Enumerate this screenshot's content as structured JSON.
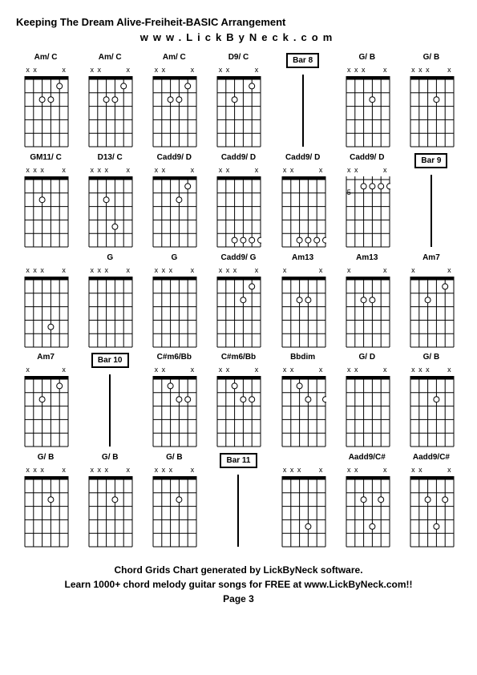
{
  "title": "Keeping The Dream Alive-Freiheit-BASIC Arrangement",
  "subtitle": "www.LickByNeck.com",
  "footer_line1": "Chord Grids Chart generated by LickByNeck software.",
  "footer_line2": "Learn 1000+ chord melody guitar songs for FREE at www.LickByNeck.com!!",
  "footer_page": "Page 3",
  "colors": {
    "background": "#ffffff",
    "stroke": "#000000",
    "text": "#000000"
  },
  "diagram_style": {
    "width": 54,
    "height": 88,
    "strings": 6,
    "frets": 5,
    "nut_height": 4,
    "dot_radius": 3.5,
    "open_dot_stroke": 1
  },
  "cells": [
    {
      "type": "chord",
      "label": "Am/ C",
      "mutes": [
        "x",
        "x",
        "",
        "",
        "",
        "x"
      ],
      "dots": [
        {
          "s": 4,
          "f": 2,
          "open": true
        },
        {
          "s": 3,
          "f": 2,
          "open": true
        },
        {
          "s": 2,
          "f": 1,
          "open": true
        }
      ],
      "ticks": [
        1
      ]
    },
    {
      "type": "chord",
      "label": "Am/ C",
      "mutes": [
        "x",
        "x",
        "",
        "",
        "",
        "x"
      ],
      "dots": [
        {
          "s": 4,
          "f": 2,
          "open": true
        },
        {
          "s": 3,
          "f": 2,
          "open": true
        },
        {
          "s": 2,
          "f": 1,
          "open": true
        }
      ],
      "ticks": []
    },
    {
      "type": "chord",
      "label": "Am/ C",
      "mutes": [
        "x",
        "x",
        "",
        "",
        "",
        "x"
      ],
      "dots": [
        {
          "s": 4,
          "f": 2,
          "open": true
        },
        {
          "s": 3,
          "f": 2,
          "open": true
        },
        {
          "s": 2,
          "f": 1,
          "open": true
        }
      ],
      "ticks": []
    },
    {
      "type": "chord",
      "label": "D9/ C",
      "mutes": [
        "x",
        "x",
        "",
        "",
        "",
        "x"
      ],
      "dots": [
        {
          "s": 4,
          "f": 2,
          "open": true
        },
        {
          "s": 2,
          "f": 1,
          "open": true
        }
      ],
      "ticks": []
    },
    {
      "type": "bar",
      "label": "Bar 8"
    },
    {
      "type": "chord",
      "label": "G/ B",
      "mutes": [
        "x",
        "x",
        "x",
        "",
        "",
        "x"
      ],
      "dots": [
        {
          "s": 3,
          "f": 2,
          "open": true
        }
      ],
      "ticks": []
    },
    {
      "type": "chord",
      "label": "G/ B",
      "mutes": [
        "x",
        "x",
        "x",
        "",
        "",
        "x"
      ],
      "dots": [
        {
          "s": 3,
          "f": 2,
          "open": true
        }
      ],
      "ticks": []
    },
    {
      "type": "chord",
      "label": "GM11/ C",
      "mutes": [
        "x",
        "x",
        "x",
        "",
        "",
        "x"
      ],
      "dots": [
        {
          "s": 4,
          "f": 2,
          "open": true
        }
      ],
      "ticks": [
        1
      ]
    },
    {
      "type": "chord",
      "label": "D13/ C",
      "mutes": [
        "x",
        "x",
        "x",
        "",
        "",
        "x"
      ],
      "dots": [
        {
          "s": 4,
          "f": 2,
          "open": true
        },
        {
          "s": 3,
          "f": 4,
          "open": true
        }
      ],
      "ticks": []
    },
    {
      "type": "chord",
      "label": "Cadd9/ D",
      "mutes": [
        "x",
        "x",
        "",
        "",
        "",
        "x"
      ],
      "dots": [
        {
          "s": 3,
          "f": 2,
          "open": true
        },
        {
          "s": 2,
          "f": 1,
          "open": true
        }
      ],
      "ticks": []
    },
    {
      "type": "chord",
      "label": "Cadd9/ D",
      "mutes": [
        "x",
        "x",
        "",
        "",
        "",
        "x"
      ],
      "dots": [
        {
          "s": 4,
          "f": 5,
          "open": true
        },
        {
          "s": 3,
          "f": 5,
          "open": true
        },
        {
          "s": 2,
          "f": 5,
          "open": true
        },
        {
          "s": 1,
          "f": 5,
          "open": true
        }
      ],
      "ticks": []
    },
    {
      "type": "chord",
      "label": "Cadd9/ D",
      "mutes": [
        "x",
        "x",
        "",
        "",
        "",
        "x"
      ],
      "dots": [
        {
          "s": 4,
          "f": 5,
          "open": true
        },
        {
          "s": 3,
          "f": 5,
          "open": true
        },
        {
          "s": 2,
          "f": 5,
          "open": true
        },
        {
          "s": 1,
          "f": 5,
          "open": true
        }
      ],
      "ticks": []
    },
    {
      "type": "chord",
      "label": "Cadd9/ D",
      "mutes": [
        "x",
        "x",
        "",
        "",
        "",
        "x"
      ],
      "dots": [
        {
          "s": 4,
          "f": 1,
          "open": true
        },
        {
          "s": 3,
          "f": 1,
          "open": true
        },
        {
          "s": 2,
          "f": 1,
          "open": true
        },
        {
          "s": 1,
          "f": 1,
          "open": true
        }
      ],
      "startFret": "5",
      "ticks": []
    },
    {
      "type": "bar",
      "label": "Bar 9"
    },
    {
      "type": "chord",
      "label": "",
      "mutes": [
        "x",
        "x",
        "x",
        "",
        "",
        "x"
      ],
      "dots": [
        {
          "s": 3,
          "f": 4,
          "open": true
        }
      ],
      "ticks": [
        1
      ]
    },
    {
      "type": "chord",
      "label": "G",
      "mutes": [
        "x",
        "x",
        "x",
        "",
        "",
        "x"
      ],
      "dots": [],
      "ticks": []
    },
    {
      "type": "chord",
      "label": "G",
      "mutes": [
        "x",
        "x",
        "x",
        "",
        "",
        "x"
      ],
      "dots": [],
      "ticks": []
    },
    {
      "type": "chord",
      "label": "Cadd9/ G",
      "mutes": [
        "x",
        "x",
        "x",
        "",
        "",
        "x"
      ],
      "dots": [
        {
          "s": 3,
          "f": 2,
          "open": true
        },
        {
          "s": 2,
          "f": 1,
          "open": true
        }
      ],
      "ticks": []
    },
    {
      "type": "chord",
      "label": "Am13",
      "mutes": [
        "x",
        "",
        "",
        "",
        "",
        "x"
      ],
      "dots": [
        {
          "s": 4,
          "f": 2,
          "open": true
        },
        {
          "s": 3,
          "f": 2,
          "open": true
        }
      ],
      "ticks": []
    },
    {
      "type": "chord",
      "label": "Am13",
      "mutes": [
        "x",
        "",
        "",
        "",
        "",
        "x"
      ],
      "dots": [
        {
          "s": 4,
          "f": 2,
          "open": true
        },
        {
          "s": 3,
          "f": 2,
          "open": true
        }
      ],
      "ticks": []
    },
    {
      "type": "chord",
      "label": "Am7",
      "mutes": [
        "x",
        "",
        "",
        "",
        "",
        "x"
      ],
      "dots": [
        {
          "s": 4,
          "f": 2,
          "open": true
        },
        {
          "s": 2,
          "f": 1,
          "open": true
        }
      ],
      "ticks": [
        1
      ]
    },
    {
      "type": "chord",
      "label": "Am7",
      "mutes": [
        "x",
        "",
        "",
        "",
        "",
        "x"
      ],
      "dots": [
        {
          "s": 4,
          "f": 2,
          "open": true
        },
        {
          "s": 2,
          "f": 1,
          "open": true
        }
      ],
      "ticks": [
        1
      ]
    },
    {
      "type": "bar",
      "label": "Bar 10"
    },
    {
      "type": "chord",
      "label": "C#m6/Bb",
      "mutes": [
        "x",
        "x",
        "",
        "",
        "",
        "x"
      ],
      "dots": [
        {
          "s": 4,
          "f": 1,
          "open": true
        },
        {
          "s": 3,
          "f": 2,
          "open": true
        },
        {
          "s": 2,
          "f": 2,
          "open": true
        }
      ],
      "ticks": []
    },
    {
      "type": "chord",
      "label": "C#m6/Bb",
      "mutes": [
        "x",
        "x",
        "",
        "",
        "",
        "x"
      ],
      "dots": [
        {
          "s": 4,
          "f": 1,
          "open": true
        },
        {
          "s": 3,
          "f": 2,
          "open": true
        },
        {
          "s": 2,
          "f": 2,
          "open": true
        }
      ],
      "ticks": []
    },
    {
      "type": "chord",
      "label": "Bbdim",
      "mutes": [
        "x",
        "x",
        "",
        "",
        "",
        "x"
      ],
      "dots": [
        {
          "s": 4,
          "f": 1,
          "open": true
        },
        {
          "s": 3,
          "f": 2,
          "open": true
        },
        {
          "s": 1,
          "f": 2,
          "open": true
        }
      ],
      "ticks": []
    },
    {
      "type": "chord",
      "label": "G/ D",
      "mutes": [
        "x",
        "x",
        "",
        "",
        "",
        "x"
      ],
      "dots": [],
      "ticks": []
    },
    {
      "type": "chord",
      "label": "G/ B",
      "mutes": [
        "x",
        "x",
        "x",
        "",
        "",
        "x"
      ],
      "dots": [
        {
          "s": 3,
          "f": 2,
          "open": true
        }
      ],
      "ticks": [
        1
      ]
    },
    {
      "type": "chord",
      "label": "G/ B",
      "mutes": [
        "x",
        "x",
        "x",
        "",
        "",
        "x"
      ],
      "dots": [
        {
          "s": 3,
          "f": 2,
          "open": true
        }
      ],
      "ticks": [
        1
      ]
    },
    {
      "type": "chord",
      "label": "G/ B",
      "mutes": [
        "x",
        "x",
        "x",
        "",
        "",
        "x"
      ],
      "dots": [
        {
          "s": 3,
          "f": 2,
          "open": true
        }
      ],
      "ticks": []
    },
    {
      "type": "chord",
      "label": "G/ B",
      "mutes": [
        "x",
        "x",
        "x",
        "",
        "",
        "x"
      ],
      "dots": [
        {
          "s": 3,
          "f": 2,
          "open": true
        }
      ],
      "ticks": []
    },
    {
      "type": "bar",
      "label": "Bar 11"
    },
    {
      "type": "chord",
      "label": "",
      "mutes": [
        "x",
        "x",
        "x",
        "",
        "",
        "x"
      ],
      "dots": [
        {
          "s": 3,
          "f": 4,
          "open": true
        }
      ],
      "ticks": []
    },
    {
      "type": "chord",
      "label": "Aadd9/C#",
      "mutes": [
        "x",
        "x",
        "",
        "",
        "",
        "x"
      ],
      "dots": [
        {
          "s": 4,
          "f": 2,
          "open": true
        },
        {
          "s": 3,
          "f": 4,
          "open": true
        },
        {
          "s": 2,
          "f": 2,
          "open": true
        }
      ],
      "ticks": []
    },
    {
      "type": "chord",
      "label": "Aadd9/C#",
      "mutes": [
        "x",
        "x",
        "",
        "",
        "",
        "x"
      ],
      "dots": [
        {
          "s": 4,
          "f": 2,
          "open": true
        },
        {
          "s": 3,
          "f": 4,
          "open": true
        },
        {
          "s": 2,
          "f": 2,
          "open": true
        }
      ],
      "ticks": [
        1
      ]
    }
  ]
}
